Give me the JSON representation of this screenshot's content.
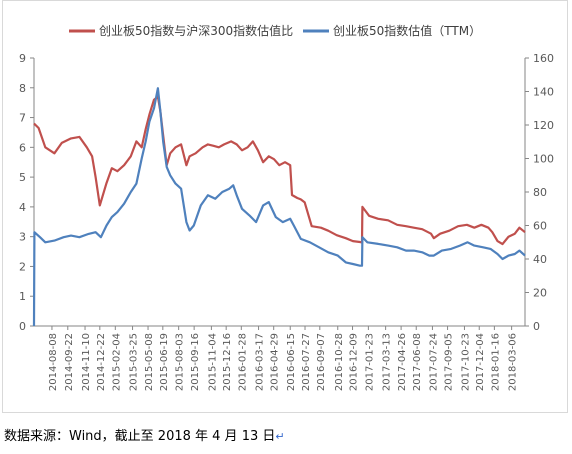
{
  "footer": {
    "source": "数据来源：Wind，截止至 2018 年 4 月 13 日",
    "return_mark": "↵"
  },
  "chart_data": {
    "type": "line",
    "title": "",
    "legend_position": "top",
    "grid": false,
    "y_left_ticks": [
      "0",
      "1",
      "2",
      "3",
      "4",
      "5",
      "6",
      "7",
      "8",
      "9"
    ],
    "y_right_ticks": [
      "0",
      "20",
      "40",
      "60",
      "80",
      "100",
      "120",
      "140",
      "160"
    ],
    "ylim_left": [
      0,
      9
    ],
    "ylim_right": [
      0,
      160
    ],
    "xlim": [
      "2014-06-18",
      "2018-04-13"
    ],
    "x_tick_labels": [
      "2014-08-08",
      "2014-09-22",
      "2014-11-10",
      "2014-12-22",
      "2015-02-04",
      "2015-03-25",
      "2015-05-08",
      "2015-06-19",
      "2015-08-03",
      "2015-09-16",
      "2015-11-04",
      "2015-12-16",
      "2016-01-28",
      "2016-03-17",
      "2016-04-29",
      "2016-06-15",
      "2016-07-27",
      "2016-09-07",
      "2016-10-28",
      "2016-12-09",
      "2017-01-23",
      "2017-03-13",
      "2017-04-26",
      "2017-06-08",
      "2017-07-24",
      "2017-09-05",
      "2017-10-23",
      "2017-12-04",
      "2018-01-16",
      "2018-03-06"
    ],
    "series": [
      {
        "name": "创业板50指数与沪深300指数估值比",
        "axis": "left",
        "color": "#c0504d",
        "x": [
          "2014-06-18",
          "2014-07-01",
          "2014-07-20",
          "2014-08-15",
          "2014-09-05",
          "2014-10-01",
          "2014-10-25",
          "2014-11-15",
          "2014-11-30",
          "2014-12-10",
          "2014-12-22",
          "2015-01-10",
          "2015-01-25",
          "2015-02-10",
          "2015-03-01",
          "2015-03-20",
          "2015-04-05",
          "2015-04-20",
          "2015-05-01",
          "2015-05-12",
          "2015-05-25",
          "2015-06-05",
          "2015-06-12",
          "2015-06-19",
          "2015-06-30",
          "2015-07-10",
          "2015-07-25",
          "2015-08-10",
          "2015-08-25",
          "2015-09-03",
          "2015-09-20",
          "2015-10-10",
          "2015-10-25",
          "2015-11-10",
          "2015-11-25",
          "2015-12-10",
          "2015-12-30",
          "2016-01-15",
          "2016-01-30",
          "2016-02-15",
          "2016-03-01",
          "2016-03-15",
          "2016-03-30",
          "2016-04-15",
          "2016-04-30",
          "2016-05-15",
          "2016-05-31",
          "2016-06-15",
          "2016-06-20",
          "2016-07-05",
          "2016-07-15",
          "2016-07-26",
          "2016-08-15",
          "2016-09-10",
          "2016-10-01",
          "2016-10-25",
          "2016-11-20",
          "2016-12-10",
          "2016-12-30",
          "2017-01-05",
          "2017-01-06",
          "2017-01-25",
          "2017-02-20",
          "2017-03-20",
          "2017-04-15",
          "2017-05-10",
          "2017-06-01",
          "2017-06-25",
          "2017-07-20",
          "2017-07-28",
          "2017-08-15",
          "2017-09-10",
          "2017-10-05",
          "2017-10-30",
          "2017-11-20",
          "2017-12-10",
          "2017-12-30",
          "2018-01-10",
          "2018-01-25",
          "2018-02-08",
          "2018-02-25",
          "2018-03-15",
          "2018-03-28",
          "2018-04-13"
        ],
        "y": [
          6.8,
          6.65,
          6.0,
          5.8,
          6.15,
          6.3,
          6.35,
          6.0,
          5.7,
          5.0,
          4.05,
          4.8,
          5.3,
          5.2,
          5.4,
          5.7,
          6.2,
          6.0,
          6.6,
          7.1,
          7.6,
          7.7,
          7.2,
          6.5,
          5.4,
          5.8,
          6.0,
          6.1,
          5.4,
          5.7,
          5.8,
          6.0,
          6.1,
          6.05,
          6.0,
          6.1,
          6.2,
          6.1,
          5.9,
          6.0,
          6.2,
          5.9,
          5.5,
          5.7,
          5.6,
          5.4,
          5.5,
          5.4,
          4.4,
          4.3,
          4.25,
          4.15,
          3.35,
          3.3,
          3.2,
          3.05,
          2.95,
          2.85,
          2.82,
          2.8,
          4.0,
          3.7,
          3.6,
          3.55,
          3.4,
          3.35,
          3.3,
          3.25,
          3.1,
          2.95,
          3.1,
          3.2,
          3.35,
          3.4,
          3.3,
          3.4,
          3.3,
          3.15,
          2.85,
          2.75,
          3.0,
          3.1,
          3.3,
          3.15
        ]
      },
      {
        "name": "创业板50指数估值（TTM）",
        "axis": "right",
        "color": "#4f81bd",
        "x": [
          "2014-06-18",
          "2014-06-19",
          "2014-07-05",
          "2014-07-20",
          "2014-08-15",
          "2014-09-10",
          "2014-10-01",
          "2014-10-25",
          "2014-11-20",
          "2014-12-10",
          "2014-12-25",
          "2015-01-10",
          "2015-01-25",
          "2015-02-10",
          "2015-03-01",
          "2015-03-20",
          "2015-04-05",
          "2015-04-20",
          "2015-05-01",
          "2015-05-12",
          "2015-05-25",
          "2015-06-05",
          "2015-06-12",
          "2015-06-20",
          "2015-06-30",
          "2015-07-10",
          "2015-07-25",
          "2015-08-10",
          "2015-08-25",
          "2015-09-03",
          "2015-09-15",
          "2015-10-05",
          "2015-10-25",
          "2015-11-15",
          "2015-12-05",
          "2015-12-25",
          "2016-01-05",
          "2016-01-15",
          "2016-01-30",
          "2016-02-20",
          "2016-03-10",
          "2016-03-30",
          "2016-04-15",
          "2016-05-05",
          "2016-05-25",
          "2016-06-15",
          "2016-06-25",
          "2016-07-15",
          "2016-08-10",
          "2016-09-05",
          "2016-10-01",
          "2016-10-28",
          "2016-11-20",
          "2016-12-10",
          "2016-12-30",
          "2017-01-05",
          "2017-01-06",
          "2017-01-20",
          "2017-02-20",
          "2017-03-20",
          "2017-04-15",
          "2017-05-10",
          "2017-06-01",
          "2017-06-25",
          "2017-07-15",
          "2017-07-28",
          "2017-08-20",
          "2017-09-15",
          "2017-10-10",
          "2017-11-01",
          "2017-11-20",
          "2017-12-15",
          "2018-01-05",
          "2018-01-25",
          "2018-02-08",
          "2018-02-25",
          "2018-03-15",
          "2018-03-28",
          "2018-04-13"
        ],
        "y": [
          0,
          56,
          53,
          50,
          51,
          53,
          54,
          53,
          55,
          56,
          53,
          60,
          65,
          68,
          73,
          80,
          85,
          100,
          110,
          122,
          130,
          142,
          128,
          110,
          95,
          90,
          85,
          82,
          62,
          57,
          60,
          72,
          78,
          76,
          80,
          82,
          84,
          78,
          70,
          66,
          62,
          72,
          74,
          65,
          62,
          64,
          60,
          52,
          50,
          47,
          44,
          42,
          38,
          37,
          36,
          36,
          53,
          50,
          49,
          48,
          47,
          45,
          45,
          44,
          42,
          42,
          45,
          46,
          48,
          50,
          48,
          47,
          46,
          43,
          40,
          42,
          43,
          45,
          42
        ]
      }
    ]
  }
}
